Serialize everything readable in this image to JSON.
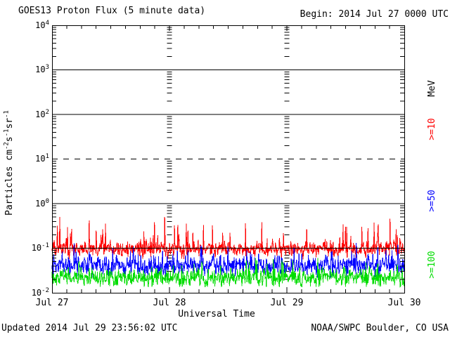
{
  "header": {
    "title": "GOES13 Proton Flux (5 minute data)",
    "begin": "Begin: 2014 Jul 27 0000 UTC"
  },
  "footer": {
    "updated": "Updated 2014 Jul 29 23:56:02 UTC",
    "source": "NOAA/SWPC Boulder, CO USA"
  },
  "y_axis": {
    "label_parts": {
      "p1": "Particles cm",
      "e1": "-2",
      "p2": "s",
      "e2": "-1",
      "p3": "sr",
      "e3": "-1"
    },
    "ticks": [
      {
        "base": "10",
        "exp": "4"
      },
      {
        "base": "10",
        "exp": "3"
      },
      {
        "base": "10",
        "exp": "2"
      },
      {
        "base": "10",
        "exp": "1"
      },
      {
        "base": "10",
        "exp": "0"
      },
      {
        "base": "10",
        "exp": "-1"
      },
      {
        "base": "10",
        "exp": "-2"
      }
    ]
  },
  "x_axis": {
    "title": "Universal Time",
    "ticks": [
      "Jul 27",
      "Jul 28",
      "Jul 29",
      "Jul 30"
    ]
  },
  "legend": {
    "unit": "MeV",
    "entries": [
      {
        "label": ">=10",
        "color": "#ff0000"
      },
      {
        "label": ">=50",
        "color": "#0000ff"
      },
      {
        "label": ">=100",
        "color": "#00dd00"
      }
    ]
  },
  "chart_data": {
    "type": "line",
    "title": "GOES13 Proton Flux (5 minute data)",
    "x_start": "2014 Jul 27 0000 UTC",
    "x_end": "2014 Jul 30 0000 UTC",
    "xlabel": "Universal Time",
    "ylabel": "Particles cm^-2 s^-1 sr^-1",
    "x_tick_labels": [
      "Jul 27",
      "Jul 28",
      "Jul 29",
      "Jul 30"
    ],
    "y_scale": "log",
    "ylim": [
      0.01,
      10000
    ],
    "cadence_minutes": 5,
    "points_per_series": 864,
    "grid": {
      "solid_decades": [
        1000,
        100,
        1,
        0.1
      ],
      "dashed_decades": [
        10
      ],
      "day_gridline_days": [
        1,
        2
      ],
      "x_minor_ticks_per_day": 8
    },
    "series": [
      {
        "name": ">=10 MeV",
        "color": "#ff0000",
        "baseline_flux": 0.095,
        "typical_range": [
          0.06,
          0.17
        ],
        "spike_max": 0.5,
        "floor": 0.055,
        "noise_sigma_log10": 0.09,
        "spike_probability": 0.1,
        "spike_max_log10": 0.62,
        "seed": 20140727
      },
      {
        "name": ">=50 MeV",
        "color": "#0000ff",
        "baseline_flux": 0.04,
        "typical_range": [
          0.024,
          0.07
        ],
        "spike_max": 0.13,
        "floor": 0.022,
        "noise_sigma_log10": 0.11,
        "spike_probability": 0.09,
        "spike_max_log10": 0.46,
        "seed": 20140728
      },
      {
        "name": ">=100 MeV",
        "color": "#00dd00",
        "baseline_flux": 0.022,
        "typical_range": [
          0.014,
          0.035
        ],
        "spike_max": 0.06,
        "floor": 0.0135,
        "noise_sigma_log10": 0.1,
        "spike_probability": 0.09,
        "spike_max_log10": 0.38,
        "seed": 20140729
      }
    ]
  }
}
